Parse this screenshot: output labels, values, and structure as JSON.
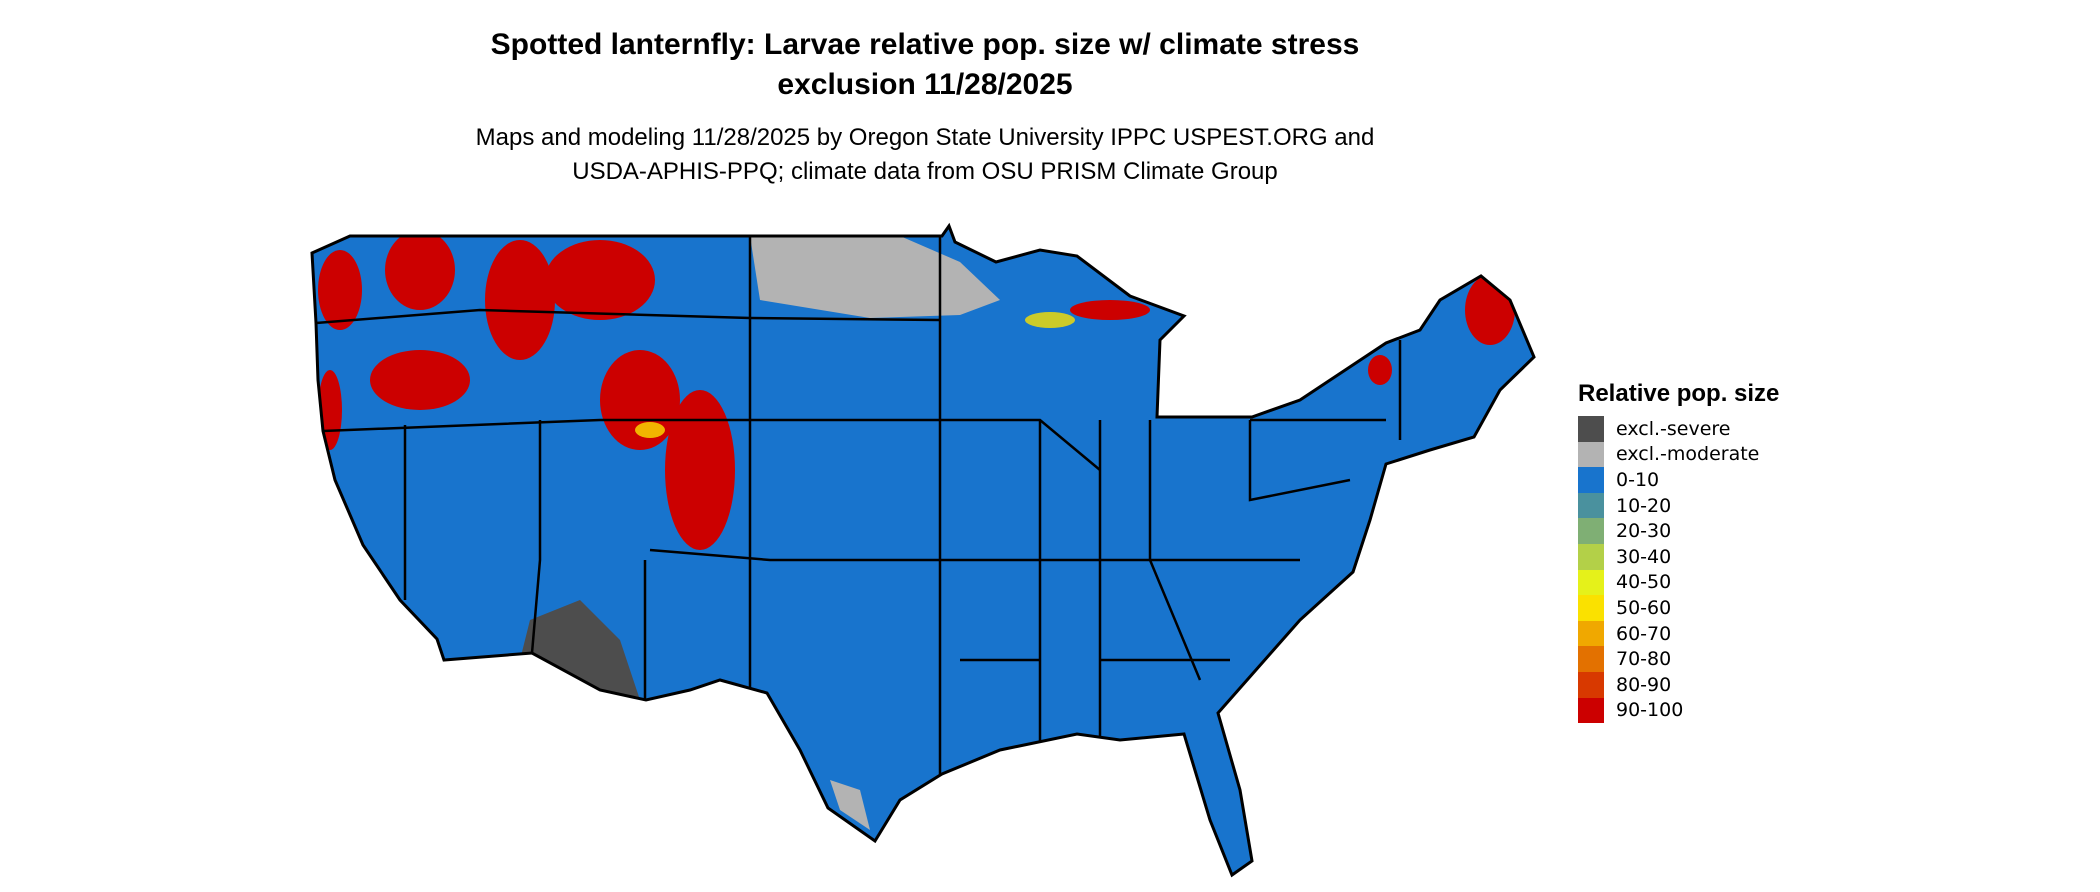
{
  "title_line1": "Spotted lanternfly: Larvae relative pop. size w/ climate stress",
  "title_line2": "exclusion 11/28/2025",
  "subtitle_line1": "Maps and modeling 11/28/2025 by Oregon State University IPPC USPEST.ORG and",
  "subtitle_line2": "USDA-APHIS-PPQ; climate data from OSU PRISM Climate Group",
  "legend": {
    "title": "Relative pop. size",
    "items": [
      {
        "label": "excl.-severe",
        "color": "#4d4d4d"
      },
      {
        "label": "excl.-moderate",
        "color": "#b3b3b3"
      },
      {
        "label": "0-10",
        "color": "#1874cd"
      },
      {
        "label": "10-20",
        "color": "#4a919e"
      },
      {
        "label": "20-30",
        "color": "#7faf74"
      },
      {
        "label": "30-40",
        "color": "#b3d048"
      },
      {
        "label": "40-50",
        "color": "#e5f11a"
      },
      {
        "label": "50-60",
        "color": "#fae100"
      },
      {
        "label": "60-70",
        "color": "#f0a800"
      },
      {
        "label": "70-80",
        "color": "#e37100"
      },
      {
        "label": "80-90",
        "color": "#d83900"
      },
      {
        "label": "90-100",
        "color": "#cc0000"
      }
    ]
  }
}
